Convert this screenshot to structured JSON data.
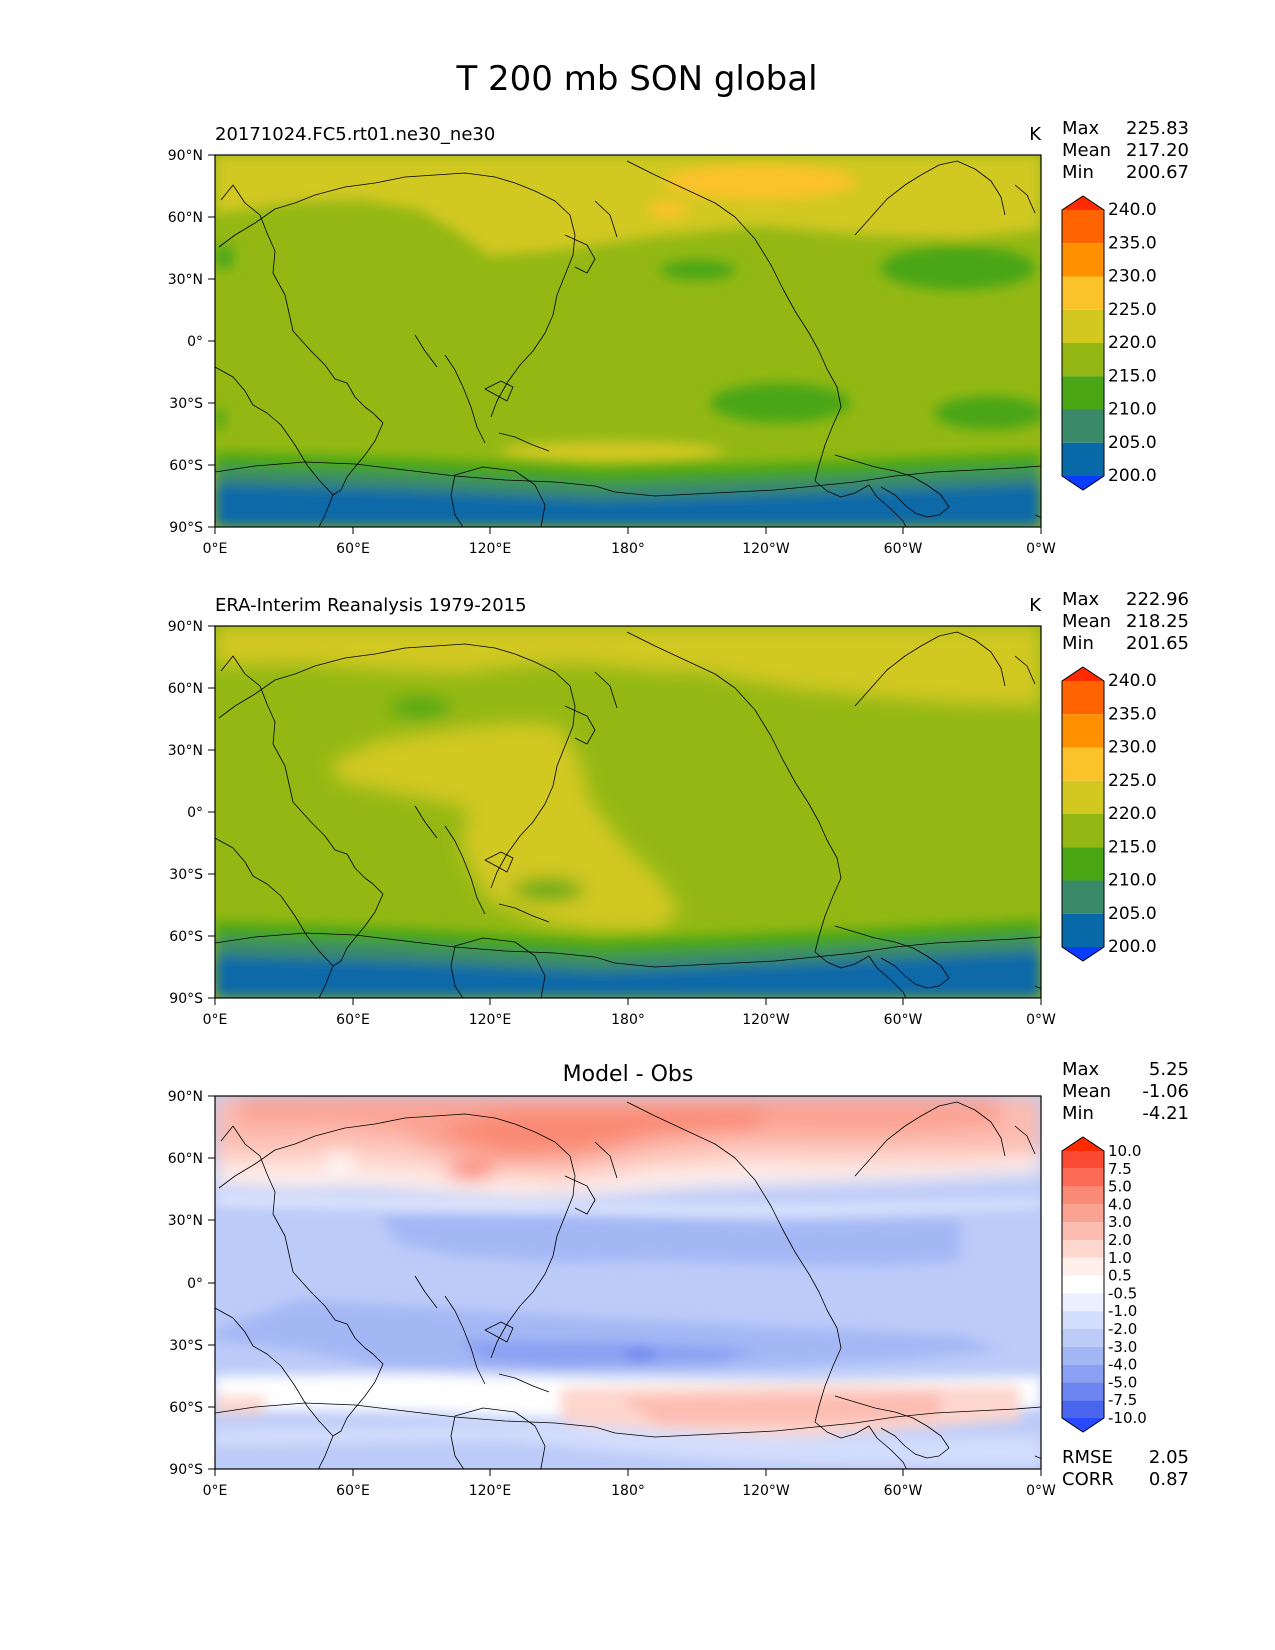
{
  "figure": {
    "title": "T 200 mb SON global"
  },
  "axes": {
    "lat_ticks": [
      "90°N",
      "60°N",
      "30°N",
      "0°",
      "30°S",
      "60°S",
      "90°S"
    ],
    "lon_ticks": [
      "0°E",
      "60°E",
      "120°E",
      "180°",
      "120°W",
      "60°W",
      "0°W"
    ]
  },
  "panels": [
    {
      "id": "model",
      "left_title": "20171024.FC5.rt01.ne30_ne30",
      "center_title": "",
      "units": "K",
      "stats": [
        {
          "label": "Max",
          "value": "225.83"
        },
        {
          "label": "Mean",
          "value": "217.20"
        },
        {
          "label": "Min",
          "value": "200.67"
        }
      ],
      "colorbar": {
        "labels": [
          "240.0",
          "235.0",
          "230.0",
          "225.0",
          "220.0",
          "215.0",
          "210.0",
          "205.0",
          "200.0"
        ],
        "colors": [
          "#ff2a00",
          "#ff6400",
          "#ff9000",
          "#fcc22a",
          "#d2c820",
          "#93b814",
          "#4aa614",
          "#3a8a6a",
          "#0869a8",
          "#0a3cff"
        ]
      },
      "footer": []
    },
    {
      "id": "obs",
      "left_title": "ERA-Interim Reanalysis 1979-2015",
      "center_title": "",
      "units": "K",
      "stats": [
        {
          "label": "Max",
          "value": "222.96"
        },
        {
          "label": "Mean",
          "value": "218.25"
        },
        {
          "label": "Min",
          "value": "201.65"
        }
      ],
      "colorbar": {
        "labels": [
          "240.0",
          "235.0",
          "230.0",
          "225.0",
          "220.0",
          "215.0",
          "210.0",
          "205.0",
          "200.0"
        ],
        "colors": [
          "#ff2a00",
          "#ff6400",
          "#ff9000",
          "#fcc22a",
          "#d2c820",
          "#93b814",
          "#4aa614",
          "#3a8a6a",
          "#0869a8",
          "#0a3cff"
        ]
      },
      "footer": []
    },
    {
      "id": "diff",
      "left_title": "",
      "center_title": "Model - Obs",
      "units": "",
      "stats": [
        {
          "label": "Max",
          "value": "5.25"
        },
        {
          "label": "Mean",
          "value": "-1.06"
        },
        {
          "label": "Min",
          "value": "-4.21"
        }
      ],
      "colorbar": {
        "labels": [
          "10.0",
          "7.5",
          "5.0",
          "4.0",
          "3.0",
          "2.0",
          "1.0",
          "0.5",
          "-0.5",
          "-1.0",
          "-2.0",
          "-3.0",
          "-4.0",
          "-5.0",
          "-7.5",
          "-10.0"
        ],
        "colors": [
          "#ff2a00",
          "#fb4a33",
          "#fa6a55",
          "#f98a75",
          "#fba393",
          "#fcbcb0",
          "#fdd6cd",
          "#fff0ec",
          "#ffffff",
          "#eaf0ff",
          "#d3ddfc",
          "#bccbf8",
          "#a4b7f5",
          "#8aa0f2",
          "#6d85f0",
          "#4a66ee",
          "#2849ff"
        ]
      },
      "footer": [
        {
          "label": "RMSE",
          "value": "2.05"
        },
        {
          "label": "CORR",
          "value": "0.87"
        }
      ]
    }
  ]
}
